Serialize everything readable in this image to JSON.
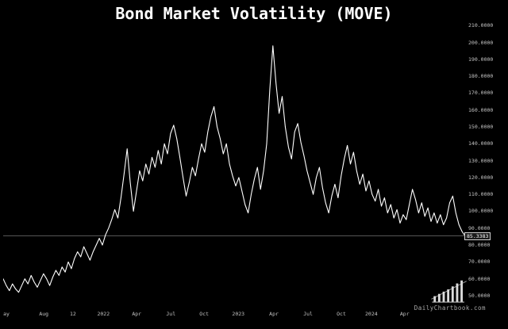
{
  "chart_data": {
    "type": "line",
    "title": "Bond Market Volatility (MOVE)",
    "xlabel": "",
    "ylabel": "",
    "ylim": [
      42,
      212
    ],
    "grid": false,
    "legend": false,
    "line_color": "#ffffff",
    "last_price_line_color": "#8a8a8a",
    "last_value": 85.3383,
    "last_value_label": "85.3383",
    "y_tick_labels": [
      "210.0000",
      "200.0000",
      "190.0000",
      "180.0000",
      "170.0000",
      "160.0000",
      "150.0000",
      "140.0000",
      "130.0000",
      "120.0000",
      "110.0000",
      "100.0000",
      "90.0000",
      "80.0000",
      "70.0000",
      "60.0000",
      "50.0000"
    ],
    "x_ticks": [
      {
        "label": "ay",
        "f": 0.007
      },
      {
        "label": "Aug",
        "f": 0.088
      },
      {
        "label": "12",
        "f": 0.151
      },
      {
        "label": "2022",
        "f": 0.217
      },
      {
        "label": "Apr",
        "f": 0.289
      },
      {
        "label": "Jul",
        "f": 0.363
      },
      {
        "label": "Oct",
        "f": 0.435
      },
      {
        "label": "2023",
        "f": 0.509
      },
      {
        "label": "Apr",
        "f": 0.586
      },
      {
        "label": "Jul",
        "f": 0.66
      },
      {
        "label": "Oct",
        "f": 0.732
      },
      {
        "label": "2024",
        "f": 0.797
      },
      {
        "label": "Apr",
        "f": 0.869
      }
    ],
    "values": [
      60,
      56,
      53,
      57,
      54,
      52,
      56,
      60,
      57,
      62,
      58,
      55,
      59,
      63,
      60,
      56,
      61,
      65,
      62,
      67,
      64,
      70,
      66,
      72,
      76,
      73,
      79,
      75,
      71,
      76,
      80,
      84,
      80,
      86,
      90,
      95,
      101,
      96,
      108,
      122,
      137,
      117,
      100,
      112,
      124,
      118,
      128,
      122,
      132,
      126,
      136,
      128,
      140,
      134,
      146,
      151,
      143,
      132,
      120,
      109,
      117,
      126,
      121,
      131,
      140,
      135,
      147,
      156,
      162,
      150,
      143,
      134,
      140,
      128,
      121,
      115,
      120,
      112,
      104,
      99,
      110,
      119,
      126,
      113,
      124,
      140,
      172,
      198,
      176,
      158,
      168,
      150,
      138,
      131,
      147,
      152,
      141,
      133,
      124,
      117,
      110,
      120,
      126,
      114,
      105,
      99,
      109,
      116,
      108,
      121,
      131,
      139,
      128,
      135,
      124,
      116,
      122,
      112,
      118,
      110,
      106,
      113,
      103,
      108,
      99,
      104,
      96,
      101,
      93,
      98,
      95,
      104,
      113,
      107,
      99,
      105,
      97,
      102,
      94,
      99,
      93,
      98,
      92,
      96,
      105,
      109,
      99,
      92,
      88,
      85.3383
    ]
  },
  "watermark": {
    "text": "DailyChartbook.com"
  },
  "theme": {
    "background": "#000000",
    "title_color": "#ffffff",
    "axis_text_color": "#c4c4c4",
    "badge_bg": "#1c1c1c",
    "badge_border": "#cfcfcf",
    "badge_text": "#ffffff"
  }
}
